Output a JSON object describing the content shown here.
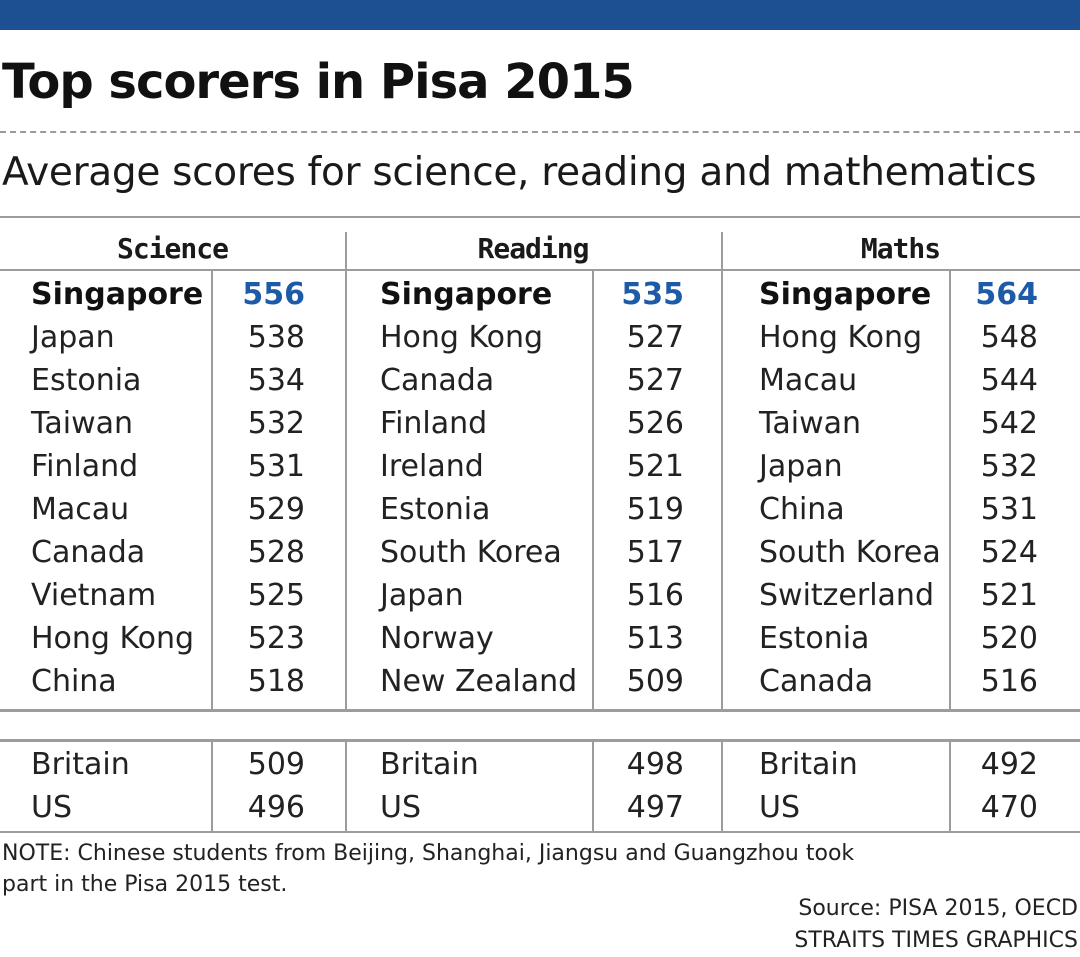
{
  "title": "Top scorers in Pisa 2015",
  "subtitle": "Average scores for science, reading and mathematics",
  "colors": {
    "top_bar": "#1d4f93",
    "highlight_score": "#1d5aa8",
    "rule": "#9c9c9c"
  },
  "chart_data": {
    "type": "table",
    "columns": [
      {
        "subject": "Science",
        "rows": [
          {
            "country": "Singapore",
            "score": "556"
          },
          {
            "country": "Japan",
            "score": "538"
          },
          {
            "country": "Estonia",
            "score": "534"
          },
          {
            "country": "Taiwan",
            "score": "532"
          },
          {
            "country": "Finland",
            "score": "531"
          },
          {
            "country": "Macau",
            "score": "529"
          },
          {
            "country": "Canada",
            "score": "528"
          },
          {
            "country": "Vietnam",
            "score": "525"
          },
          {
            "country": "Hong Kong",
            "score": "523"
          },
          {
            "country": "China",
            "score": "518"
          }
        ],
        "comparison": [
          {
            "country": "Britain",
            "score": "509"
          },
          {
            "country": "US",
            "score": "496"
          }
        ]
      },
      {
        "subject": "Reading",
        "rows": [
          {
            "country": "Singapore",
            "score": "535"
          },
          {
            "country": "Hong Kong",
            "score": "527"
          },
          {
            "country": "Canada",
            "score": "527"
          },
          {
            "country": "Finland",
            "score": "526"
          },
          {
            "country": "Ireland",
            "score": "521"
          },
          {
            "country": "Estonia",
            "score": "519"
          },
          {
            "country": "South Korea",
            "score": "517"
          },
          {
            "country": "Japan",
            "score": "516"
          },
          {
            "country": "Norway",
            "score": "513"
          },
          {
            "country": "New Zealand",
            "score": "509"
          }
        ],
        "comparison": [
          {
            "country": "Britain",
            "score": "498"
          },
          {
            "country": "US",
            "score": "497"
          }
        ]
      },
      {
        "subject": "Maths",
        "rows": [
          {
            "country": "Singapore",
            "score": "564"
          },
          {
            "country": "Hong Kong",
            "score": "548"
          },
          {
            "country": "Macau",
            "score": "544"
          },
          {
            "country": "Taiwan",
            "score": "542"
          },
          {
            "country": "Japan",
            "score": "532"
          },
          {
            "country": "China",
            "score": "531"
          },
          {
            "country": "South Korea",
            "score": "524"
          },
          {
            "country": "Switzerland",
            "score": "521"
          },
          {
            "country": "Estonia",
            "score": "520"
          },
          {
            "country": "Canada",
            "score": "516"
          }
        ],
        "comparison": [
          {
            "country": "Britain",
            "score": "492"
          },
          {
            "country": "US",
            "score": "470"
          }
        ]
      }
    ]
  },
  "note": "NOTE: Chinese students from Beijing, Shanghai, Jiangsu and Guangzhou took part in the Pisa 2015 test.",
  "source": {
    "line1": "Source: PISA 2015, OECD",
    "line2": "STRAITS TIMES GRAPHICS"
  }
}
